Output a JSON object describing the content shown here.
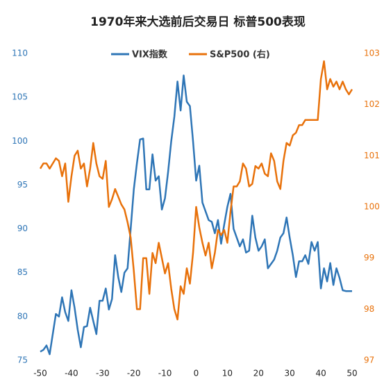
{
  "chart_data": {
    "type": "line",
    "title": "1970年来大选前后交易日 标普500表现",
    "x": [
      -50,
      -49,
      -48,
      -47,
      -46,
      -45,
      -44,
      -43,
      -42,
      -41,
      -40,
      -39,
      -38,
      -37,
      -36,
      -35,
      -34,
      -33,
      -32,
      -31,
      -30,
      -29,
      -28,
      -27,
      -26,
      -25,
      -24,
      -23,
      -22,
      -21,
      -20,
      -19,
      -18,
      -17,
      -16,
      -15,
      -14,
      -13,
      -12,
      -11,
      -10,
      -9,
      -8,
      -7,
      -6,
      -5,
      -4,
      -3,
      -2,
      -1,
      0,
      1,
      2,
      3,
      4,
      5,
      6,
      7,
      8,
      9,
      10,
      11,
      12,
      13,
      14,
      15,
      16,
      17,
      18,
      19,
      20,
      21,
      22,
      23,
      24,
      25,
      26,
      27,
      28,
      29,
      30,
      31,
      32,
      33,
      34,
      35,
      36,
      37,
      38,
      39,
      40,
      41,
      42,
      43,
      44,
      45,
      46,
      47,
      48,
      49,
      50
    ],
    "xlim": [
      -50,
      50
    ],
    "xticks": [
      -50,
      -40,
      -30,
      -20,
      -10,
      0,
      10,
      20,
      30,
      40,
      50
    ],
    "ylim": [
      75,
      110
    ],
    "yticks": [
      75,
      80,
      85,
      90,
      95,
      100,
      105,
      110
    ],
    "y2lim": [
      97,
      103
    ],
    "y2ticks": [
      97,
      98,
      99,
      100,
      101,
      102,
      103
    ],
    "legend": "top",
    "series": [
      {
        "name": "VIX指数",
        "color": "#2e75b6",
        "axis": "y",
        "values": [
          76,
          76.2,
          76.7,
          75.7,
          78,
          80.3,
          80,
          82.2,
          80.5,
          79.5,
          83,
          81,
          78.5,
          76.5,
          78.8,
          78.9,
          81,
          79.5,
          78,
          81.8,
          81.8,
          83.2,
          80.8,
          82,
          87,
          84.5,
          82.8,
          85,
          85.5,
          90,
          94.5,
          97.5,
          100.2,
          100.3,
          94.5,
          94.5,
          98.5,
          95.5,
          96,
          92.2,
          93.5,
          96.5,
          100,
          102.8,
          106.8,
          103.5,
          107.5,
          104.5,
          104,
          100,
          95.5,
          97.2,
          93,
          92,
          91,
          90.8,
          89.5,
          91,
          88.3,
          90.5,
          92.5,
          94,
          90,
          89,
          88,
          88.8,
          87.3,
          87.5,
          91.5,
          89,
          87.5,
          88,
          88.8,
          85.5,
          86,
          86.5,
          87.5,
          89,
          89.5,
          91.3,
          89,
          87,
          84.5,
          86.3,
          86.3,
          87,
          86,
          88.5,
          87.5,
          88.5,
          83.2,
          85.5,
          84,
          86.1,
          83.6,
          85.5,
          84.4,
          83,
          82.9,
          82.9,
          82.9
        ]
      },
      {
        "name": "S&P500 (右)",
        "color": "#e8710a",
        "axis": "y2",
        "values": [
          100.75,
          100.85,
          100.85,
          100.75,
          100.85,
          100.95,
          100.9,
          100.6,
          100.85,
          100.1,
          100.6,
          101,
          101.1,
          100.75,
          100.85,
          100.4,
          100.75,
          101.25,
          100.85,
          100.6,
          100.55,
          100.9,
          100,
          100.15,
          100.35,
          100.2,
          100.05,
          99.95,
          99.7,
          99.4,
          98.75,
          98,
          98,
          99,
          99,
          98.3,
          99.1,
          98.9,
          99.3,
          99,
          98.7,
          98.9,
          98.4,
          98,
          97.8,
          98.45,
          98.3,
          98.8,
          98.5,
          99.1,
          100,
          99.6,
          99.3,
          99.05,
          99.3,
          98.8,
          99.1,
          99.55,
          99.45,
          99.55,
          99.3,
          99.9,
          100.4,
          100.4,
          100.5,
          100.85,
          100.75,
          100.4,
          100.45,
          100.8,
          100.75,
          100.85,
          100.65,
          100.6,
          101.05,
          100.9,
          100.5,
          100.35,
          100.9,
          101.25,
          101.2,
          101.4,
          101.45,
          101.6,
          101.6,
          101.7,
          101.7,
          101.7,
          101.7,
          101.7,
          102.5,
          102.85,
          102.3,
          102.5,
          102.35,
          102.45,
          102.3,
          102.45,
          102.3,
          102.2,
          102.3
        ]
      }
    ]
  }
}
